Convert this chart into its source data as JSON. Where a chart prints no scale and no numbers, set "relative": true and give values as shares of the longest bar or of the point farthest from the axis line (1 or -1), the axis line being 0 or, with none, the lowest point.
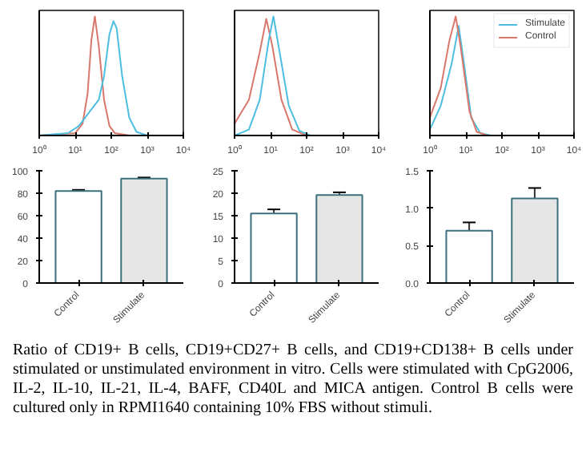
{
  "chart_data": [
    {
      "type": "line",
      "relative": true,
      "log": "x",
      "tick_labels": "x",
      "xlim": [
        1,
        10000
      ],
      "xticks": [
        {
          "value": 1,
          "label": "10⁰"
        },
        {
          "value": 10,
          "label": "10¹"
        },
        {
          "value": 100,
          "label": "10²"
        },
        {
          "value": 1000,
          "label": "10³"
        },
        {
          "value": 10000,
          "label": "10⁴"
        }
      ],
      "grid": false,
      "legend": false,
      "series": [
        {
          "color": "#d9776b",
          "x": [
            1,
            10,
            16,
            22,
            28,
            35,
            45,
            63,
            89,
            126,
            316,
            10000
          ],
          "values": [
            0,
            0.02,
            0.1,
            0.35,
            0.8,
            1.0,
            0.75,
            0.3,
            0.08,
            0.02,
            0,
            0
          ]
        },
        {
          "color": "#4dbde0",
          "x": [
            1,
            6.3,
            12.6,
            25,
            45,
            63,
            89,
            115,
            141,
            200,
            316,
            500,
            1000,
            10000
          ],
          "values": [
            0,
            0.02,
            0.08,
            0.2,
            0.3,
            0.5,
            0.85,
            0.96,
            0.9,
            0.5,
            0.15,
            0.03,
            0,
            0
          ]
        }
      ]
    },
    {
      "type": "line",
      "relative": true,
      "log": "x",
      "tick_labels": "x",
      "xlim": [
        1,
        10000
      ],
      "xticks": [
        {
          "value": 1,
          "label": "10⁰"
        },
        {
          "value": 10,
          "label": "10¹"
        },
        {
          "value": 100,
          "label": "10²"
        },
        {
          "value": 1000,
          "label": "10³"
        },
        {
          "value": 10000,
          "label": "10⁴"
        }
      ],
      "grid": false,
      "legend": false,
      "series": [
        {
          "color": "#d9776b",
          "x": [
            1,
            2.5,
            5,
            7.6,
            11.2,
            20,
            40,
            100,
            10000
          ],
          "values": [
            0.1,
            0.3,
            0.7,
            0.98,
            0.75,
            0.3,
            0.05,
            0,
            0
          ]
        },
        {
          "color": "#4dbde0",
          "x": [
            1,
            2.5,
            5,
            8.9,
            12,
            17.8,
            32,
            63,
            126,
            10000
          ],
          "values": [
            0,
            0.05,
            0.3,
            0.8,
            1.0,
            0.7,
            0.25,
            0.04,
            0,
            0
          ]
        }
      ]
    },
    {
      "type": "line",
      "relative": true,
      "log": "x",
      "tick_labels": "x",
      "xlim": [
        1,
        10000
      ],
      "xticks": [
        {
          "value": 1,
          "label": "10⁰"
        },
        {
          "value": 10,
          "label": "10¹"
        },
        {
          "value": 100,
          "label": "10²"
        },
        {
          "value": 1000,
          "label": "10³"
        },
        {
          "value": 10000,
          "label": "10⁴"
        }
      ],
      "grid": false,
      "legend": "top right",
      "series": [
        {
          "name": "Stimulate",
          "color": "#4dbde0",
          "x": [
            1,
            2,
            4,
            6.3,
            8.9,
            14,
            25,
            50,
            10000
          ],
          "values": [
            0.05,
            0.25,
            0.6,
            0.92,
            0.6,
            0.15,
            0.02,
            0,
            0
          ]
        },
        {
          "name": "Control",
          "color": "#d9776b",
          "x": [
            1,
            2,
            3.5,
            5.2,
            7.1,
            12.6,
            20,
            40,
            10000
          ],
          "values": [
            0.15,
            0.4,
            0.8,
            1.0,
            0.75,
            0.2,
            0.03,
            0,
            0
          ]
        }
      ]
    },
    {
      "type": "bar",
      "categories": [
        "Control",
        "Stimulate"
      ],
      "values": [
        82,
        93
      ],
      "errors": [
        1,
        1
      ],
      "colors": [
        "#ffffff",
        "#e6e6e6"
      ],
      "ylim": [
        0,
        100
      ],
      "yticks": [
        0,
        20,
        40,
        60,
        80,
        100
      ],
      "grid": false
    },
    {
      "type": "bar",
      "categories": [
        "Control",
        "Stimulate"
      ],
      "values": [
        15.5,
        19.6
      ],
      "errors": [
        0.9,
        0.6
      ],
      "colors": [
        "#ffffff",
        "#e6e6e6"
      ],
      "ylim": [
        0,
        25
      ],
      "yticks": [
        0,
        5,
        10,
        15,
        20,
        25
      ],
      "grid": false
    },
    {
      "type": "bar",
      "categories": [
        "Control",
        "Stimulate"
      ],
      "values": [
        0.7,
        1.13
      ],
      "errors": [
        0.11,
        0.14
      ],
      "colors": [
        "#ffffff",
        "#e6e6e6"
      ],
      "ylim": [
        0,
        1.5
      ],
      "yticks": [
        {
          "value": 0,
          "label": "0.0"
        },
        {
          "value": 0.5,
          "label": "0.5"
        },
        {
          "value": 1,
          "label": "1.0"
        },
        {
          "value": 1.5,
          "label": "1.5"
        }
      ],
      "grid": false,
      "annotations": [
        "Ratio of CD19+ B cells, CD19+CD27+ B cells, and CD19+CD138+ B cells under stimulated or unstimulated environment in vitro. Cells were stimulated with CpG2006, IL-2, IL-10, IL-21, IL-4, BAFF, CD40L and MICA antigen. Control B cells were cultured only in RPMI1640 containing 10% FBS without stimuli."
      ]
    }
  ]
}
